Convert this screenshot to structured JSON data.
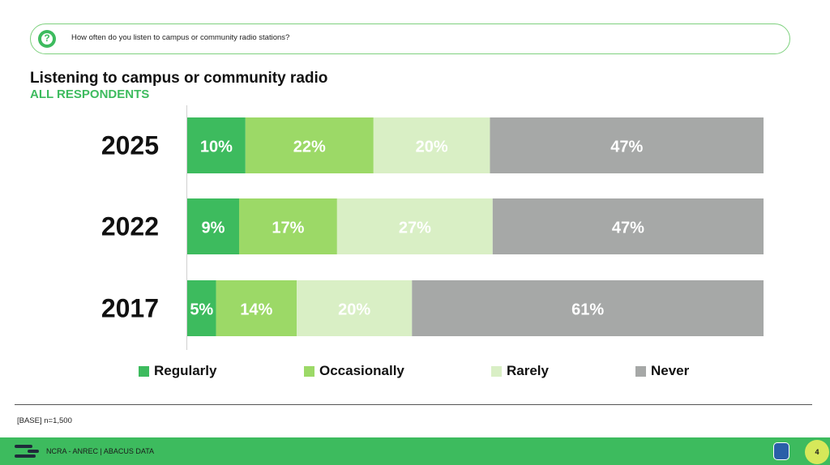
{
  "question": {
    "text": "How often do you listen to campus or community radio stations?",
    "icon": "question-icon"
  },
  "chart_data": {
    "type": "bar",
    "orientation": "horizontal",
    "stacked": true,
    "title": "Listening to campus or community radio",
    "subtitle": "ALL RESPONDENTS",
    "categories": [
      "2025",
      "2022",
      "2017"
    ],
    "series": [
      {
        "name": "Regularly",
        "values": [
          10,
          9,
          5
        ],
        "labels": [
          "10%",
          "9%",
          "5%"
        ],
        "color": "#3dbb5e",
        "label_color": "#ffffff"
      },
      {
        "name": "Occasionally",
        "values": [
          22,
          17,
          14
        ],
        "labels": [
          "22%",
          "17%",
          "14%"
        ],
        "color": "#9cd967",
        "label_color": "#ffffff"
      },
      {
        "name": "Rarely",
        "values": [
          20,
          27,
          20
        ],
        "labels": [
          "20%",
          "27%",
          "20%"
        ],
        "color": "#d9efc5",
        "label_color": "#ffffff"
      },
      {
        "name": "Never",
        "values": [
          47,
          47,
          61
        ],
        "labels": [
          "47%",
          "47%",
          "61%"
        ],
        "color": "#a6a8a7",
        "label_color": "#ffffff"
      }
    ],
    "legend_position": "bottom",
    "grid": false
  },
  "base_note": "[BASE] n=1,500",
  "footer": {
    "text": "NCRA - ANREC  |  ABACUS DATA",
    "page_number": "4"
  }
}
